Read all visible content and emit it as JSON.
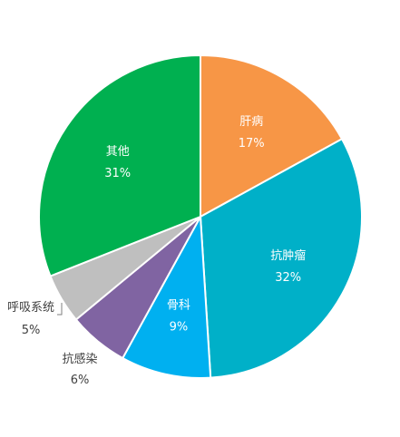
{
  "chart_data": {
    "type": "pie",
    "start_angle_deg": 0,
    "direction": "clockwise",
    "slices": [
      {
        "label": "肝病",
        "value": 17,
        "display": "17%",
        "color": "#F79646",
        "label_position": "inside"
      },
      {
        "label": "抗肿瘤",
        "value": 32,
        "display": "32%",
        "color": "#00B0C8",
        "label_position": "inside"
      },
      {
        "label": "骨科",
        "value": 9,
        "display": "9%",
        "color": "#00B0F0",
        "label_position": "inside"
      },
      {
        "label": "抗感染",
        "value": 6,
        "display": "6%",
        "color": "#8064A2",
        "label_position": "outside"
      },
      {
        "label": "呼吸系统",
        "value": 5,
        "display": "5%",
        "color": "#BFBFBF",
        "label_position": "outside"
      },
      {
        "label": "其他",
        "value": 31,
        "display": "31%",
        "color": "#00B050",
        "label_position": "inside"
      }
    ]
  }
}
